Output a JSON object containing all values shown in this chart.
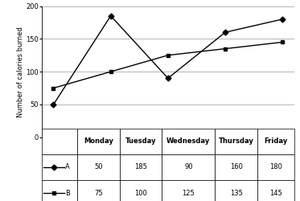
{
  "days": [
    "Monday",
    "Tuesday",
    "Wednesday",
    "Thursday",
    "Friday"
  ],
  "A_values": [
    50,
    185,
    90,
    160,
    180
  ],
  "B_values": [
    75,
    100,
    125,
    135,
    145
  ],
  "ylabel": "Number of calories burned",
  "ylim": [
    0,
    200
  ],
  "yticks": [
    0,
    50,
    100,
    150,
    200
  ],
  "table_header": [
    "Monday",
    "Tuesday",
    "Wednesday",
    "Thursday",
    "Friday"
  ],
  "table_row_A": [
    "50",
    "185",
    "90",
    "160",
    "180"
  ],
  "table_row_B": [
    "75",
    "100",
    "125",
    "135",
    "145"
  ],
  "col_widths": [
    0.13,
    0.155,
    0.155,
    0.195,
    0.155,
    0.135
  ],
  "legend_A": "A",
  "legend_B": "B",
  "ylabel_fontsize": 6,
  "tick_fontsize": 6,
  "table_fontsize": 6,
  "header_fontweight": "bold"
}
